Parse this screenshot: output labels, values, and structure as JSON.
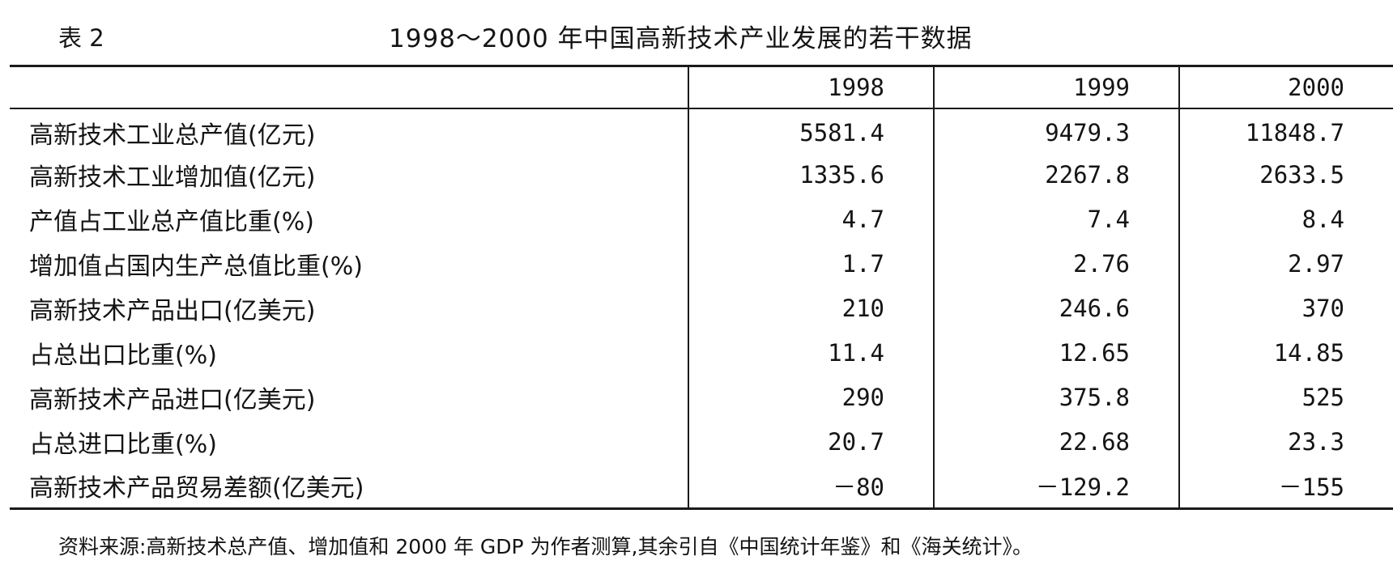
{
  "table_no": "表 2",
  "title": "1998～2000 年中国高新技术产业发展的若干数据",
  "columns": [
    "",
    "1998",
    "1999",
    "2000"
  ],
  "rows": [
    {
      "label": "高新技术工业总产值(亿元)",
      "values": [
        "5581.4",
        "9479.3",
        "11848.7"
      ]
    },
    {
      "label": "高新技术工业增加值(亿元)",
      "values": [
        "1335.6",
        "2267.8",
        "2633.5"
      ]
    },
    {
      "label": "产值占工业总产值比重(%)",
      "values": [
        "4.7",
        "7.4",
        "8.4"
      ]
    },
    {
      "label": "增加值占国内生产总值比重(%)",
      "values": [
        "1.7",
        "2.76",
        "2.97"
      ]
    },
    {
      "label": "高新技术产品出口(亿美元)",
      "values": [
        "210",
        "246.6",
        "370"
      ]
    },
    {
      "label": "占总出口比重(%)",
      "values": [
        "11.4",
        "12.65",
        "14.85"
      ]
    },
    {
      "label": "高新技术产品进口(亿美元)",
      "values": [
        "290",
        "375.8",
        "525"
      ]
    },
    {
      "label": "占总进口比重(%)",
      "values": [
        "20.7",
        "22.68",
        "23.3"
      ]
    },
    {
      "label": "高新技术产品贸易差额(亿美元)",
      "values": [
        "－80",
        "－129.2",
        "－155"
      ]
    }
  ],
  "source": "资料来源:高新技术总产值、增加值和 2000 年 GDP 为作者测算,其余引自《中国统计年鉴》和《海关统计》。"
}
